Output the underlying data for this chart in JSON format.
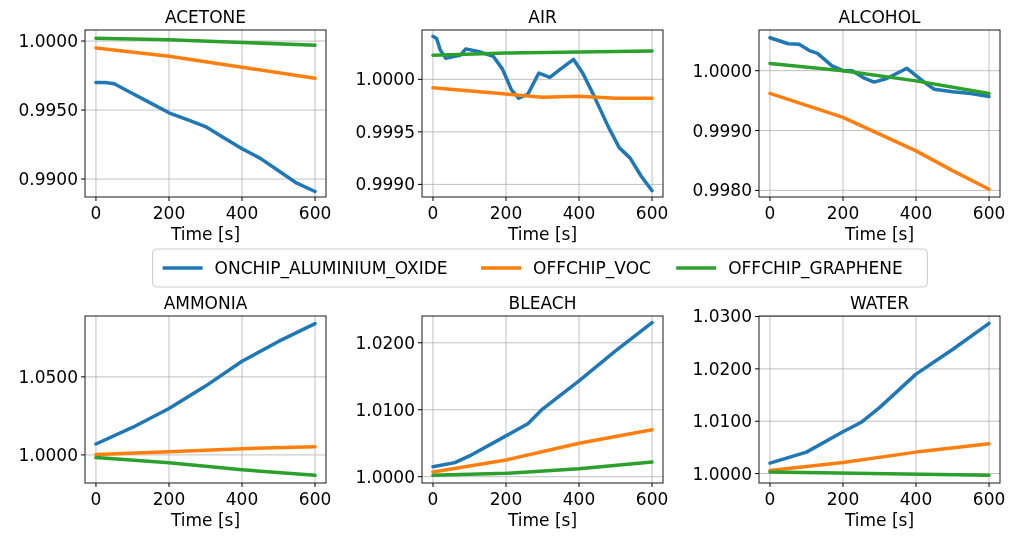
{
  "chart_data": [
    {
      "type": "line",
      "title": "ACETONE",
      "xlabel": "Time [s]",
      "xlim": [
        -30,
        630
      ],
      "xticks": [
        0,
        200,
        400,
        600
      ],
      "ylim": [
        0.9887,
        1.0008
      ],
      "yticks": [
        {
          "value": 1.0,
          "label": "1.0000"
        },
        {
          "value": 0.995,
          "label": "0.9950"
        },
        {
          "value": 0.99,
          "label": "0.9900"
        }
      ],
      "grid": true,
      "legend": "bottom",
      "series": [
        {
          "name": "ONCHIP_ALUMINIUM_OXIDE",
          "color": "#1f77b4",
          "x": [
            0,
            25,
            50,
            100,
            150,
            200,
            250,
            300,
            350,
            400,
            450,
            500,
            550,
            600
          ],
          "values": [
            0.997,
            0.997,
            0.9969,
            0.9962,
            0.9955,
            0.9948,
            0.9943,
            0.9938,
            0.993,
            0.9922,
            0.9915,
            0.9906,
            0.9897,
            0.9891
          ]
        },
        {
          "name": "OFFCHIP_VOC",
          "color": "#ff7f0e",
          "x": [
            0,
            200,
            400,
            600
          ],
          "values": [
            0.9995,
            0.9989,
            0.9981,
            0.9973
          ]
        },
        {
          "name": "OFFCHIP_GRAPHENE",
          "color": "#2ca02c",
          "x": [
            0,
            200,
            400,
            600
          ],
          "values": [
            1.0002,
            1.0001,
            0.9999,
            0.9997
          ]
        }
      ]
    },
    {
      "type": "line",
      "title": "AIR",
      "xlabel": "Time [s]",
      "xlim": [
        -30,
        630
      ],
      "xticks": [
        0,
        200,
        400,
        600
      ],
      "ylim": [
        0.99888,
        1.00047
      ],
      "yticks": [
        {
          "value": 1.0,
          "label": "1.0000"
        },
        {
          "value": 0.9995,
          "label": "0.9995"
        },
        {
          "value": 0.999,
          "label": "0.9990"
        }
      ],
      "grid": true,
      "series": [
        {
          "color": "#1f77b4",
          "x": [
            0,
            10,
            20,
            35,
            60,
            75,
            90,
            130,
            165,
            190,
            215,
            235,
            260,
            290,
            320,
            350,
            385,
            410,
            440,
            480,
            510,
            540,
            570,
            600
          ],
          "values": [
            1.00041,
            1.00039,
            1.00028,
            1.0002,
            1.00022,
            1.00023,
            1.00029,
            1.00026,
            1.00022,
            1.0001,
            0.9999,
            0.99982,
            0.99986,
            1.00006,
            1.00002,
            1.0001,
            1.00019,
            1.00006,
            0.99985,
            0.99955,
            0.99935,
            0.99925,
            0.99908,
            0.99894
          ]
        },
        {
          "color": "#ff7f0e",
          "x": [
            0,
            200,
            300,
            400,
            500,
            600
          ],
          "values": [
            0.99992,
            0.99986,
            0.99983,
            0.99984,
            0.99982,
            0.99982
          ]
        },
        {
          "color": "#2ca02c",
          "x": [
            0,
            200,
            400,
            600
          ],
          "values": [
            1.00023,
            1.00025,
            1.00026,
            1.00027
          ]
        }
      ]
    },
    {
      "type": "line",
      "title": "ALCOHOL",
      "xlabel": "Time [s]",
      "xlim": [
        -30,
        630
      ],
      "xticks": [
        0,
        200,
        400,
        600
      ],
      "ylim": [
        0.99789,
        1.00068
      ],
      "yticks": [
        {
          "value": 1.0,
          "label": "1.0000"
        },
        {
          "value": 0.999,
          "label": "0.9990"
        },
        {
          "value": 0.998,
          "label": "0.9980"
        }
      ],
      "grid": true,
      "series": [
        {
          "color": "#1f77b4",
          "x": [
            0,
            50,
            80,
            110,
            130,
            170,
            200,
            225,
            260,
            285,
            320,
            375,
            420,
            450,
            500,
            550,
            600
          ],
          "values": [
            1.00055,
            1.00045,
            1.00044,
            1.00033,
            1.00029,
            1.00008,
            1.0,
            1.0,
            0.99987,
            0.99981,
            0.99987,
            1.00004,
            0.99982,
            0.99969,
            0.99965,
            0.99962,
            0.99957
          ]
        },
        {
          "color": "#ff7f0e",
          "x": [
            0,
            200,
            300,
            400,
            500,
            600
          ],
          "values": [
            0.99962,
            0.99922,
            0.99894,
            0.99866,
            0.99833,
            0.99802
          ]
        },
        {
          "color": "#2ca02c",
          "x": [
            0,
            200,
            400,
            600
          ],
          "values": [
            1.00012,
            1.0,
            0.99983,
            0.99962
          ]
        }
      ]
    },
    {
      "type": "line",
      "title": "AMMONIA",
      "xlabel": "Time [s]",
      "xlim": [
        -30,
        630
      ],
      "xticks": [
        0,
        200,
        400,
        600
      ],
      "ylim": [
        0.982,
        1.089
      ],
      "yticks": [
        {
          "value": 1.05,
          "label": "1.0500"
        },
        {
          "value": 1.0,
          "label": "1.0000"
        }
      ],
      "grid": true,
      "series": [
        {
          "color": "#1f77b4",
          "x": [
            0,
            100,
            200,
            300,
            400,
            500,
            600
          ],
          "values": [
            1.007,
            1.0176,
            1.0297,
            1.0441,
            1.06,
            1.0727,
            1.0841
          ]
        },
        {
          "color": "#ff7f0e",
          "x": [
            0,
            200,
            400,
            600
          ],
          "values": [
            1.0002,
            1.0021,
            1.004,
            1.0053
          ]
        },
        {
          "color": "#2ca02c",
          "x": [
            0,
            200,
            400,
            600
          ],
          "values": [
            0.9983,
            0.9949,
            0.9905,
            0.9869
          ]
        }
      ]
    },
    {
      "type": "line",
      "title": "BLEACH",
      "xlabel": "Time [s]",
      "xlim": [
        -30,
        630
      ],
      "xticks": [
        0,
        200,
        400,
        600
      ],
      "ylim": [
        0.99906,
        1.024
      ],
      "yticks": [
        {
          "value": 1.02,
          "label": "1.0200"
        },
        {
          "value": 1.01,
          "label": "1.0100"
        },
        {
          "value": 1.0,
          "label": "1.0000"
        }
      ],
      "grid": true,
      "series": [
        {
          "color": "#1f77b4",
          "x": [
            0,
            60,
            100,
            200,
            260,
            300,
            400,
            500,
            600
          ],
          "values": [
            1.0015,
            1.0021,
            1.0031,
            1.0061,
            1.0079,
            1.0101,
            1.0143,
            1.0188,
            1.023
          ]
        },
        {
          "color": "#ff7f0e",
          "x": [
            0,
            200,
            400,
            600
          ],
          "values": [
            1.0007,
            1.0025,
            1.005,
            1.007
          ]
        },
        {
          "color": "#2ca02c",
          "x": [
            0,
            200,
            400,
            600
          ],
          "values": [
            1.0002,
            1.0005,
            1.0012,
            1.0022
          ]
        }
      ]
    },
    {
      "type": "line",
      "title": "WATER",
      "xlabel": "Time [s]",
      "xlim": [
        -30,
        630
      ],
      "xticks": [
        0,
        200,
        400,
        600
      ],
      "ylim": [
        0.9982,
        1.0301
      ],
      "yticks": [
        {
          "value": 1.03,
          "label": "1.0300"
        },
        {
          "value": 1.02,
          "label": "1.0200"
        },
        {
          "value": 1.01,
          "label": "1.0100"
        },
        {
          "value": 1.0,
          "label": "1.0000"
        }
      ],
      "grid": true,
      "series": [
        {
          "color": "#1f77b4",
          "x": [
            0,
            100,
            200,
            250,
            300,
            400,
            500,
            600
          ],
          "values": [
            1.002,
            1.0041,
            1.008,
            1.0098,
            1.0126,
            1.019,
            1.0237,
            1.0287
          ]
        },
        {
          "color": "#ff7f0e",
          "x": [
            0,
            200,
            400,
            600
          ],
          "values": [
            1.0006,
            1.0021,
            1.0041,
            1.0057
          ]
        },
        {
          "color": "#2ca02c",
          "x": [
            0,
            600
          ],
          "values": [
            1.0003,
            0.9997
          ]
        }
      ]
    }
  ]
}
